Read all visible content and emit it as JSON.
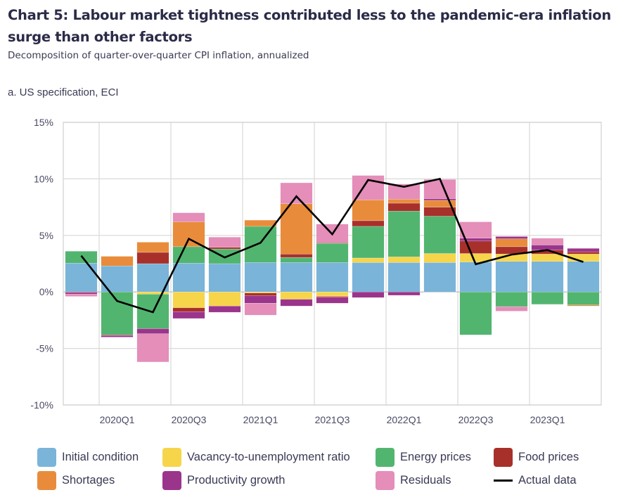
{
  "header": {
    "title": "Chart 5: Labour market tightness contributed less to the pandemic-era inflation surge than other factors",
    "subtitle": "Decomposition of quarter-over-quarter CPI inflation, annualized",
    "panel_label": "a. US specification, ECI"
  },
  "colors": {
    "initial_condition": "#7ab4d9",
    "vacancy_ratio": "#f6d54a",
    "energy": "#52b56f",
    "food": "#a8302b",
    "shortages": "#e88c3c",
    "productivity": "#9b358b",
    "residuals": "#e48eb9",
    "actual": "#000000",
    "grid": "#d9d9d9",
    "text": "#4a4a66"
  },
  "legend": [
    {
      "key": "initial_condition",
      "label": "Initial condition",
      "type": "box"
    },
    {
      "key": "vacancy_ratio",
      "label": "Vacancy-to-unemployment ratio",
      "type": "box"
    },
    {
      "key": "energy",
      "label": "Energy prices",
      "type": "box"
    },
    {
      "key": "food",
      "label": "Food prices",
      "type": "box"
    },
    {
      "key": "shortages",
      "label": "Shortages",
      "type": "box"
    },
    {
      "key": "productivity",
      "label": "Productivity growth",
      "type": "box"
    },
    {
      "key": "residuals",
      "label": "Residuals",
      "type": "box"
    },
    {
      "key": "actual",
      "label": "Actual data",
      "type": "line"
    }
  ],
  "chart_data": {
    "type": "bar",
    "stacked": true,
    "title": "Chart 5: Labour market tightness contributed less to the pandemic-era inflation surge than other factors",
    "subtitle": "Decomposition of quarter-over-quarter CPI inflation, annualized",
    "panel": "a. US specification, ECI",
    "xlabel": "",
    "ylabel": "",
    "ylim": [
      -10,
      15
    ],
    "yticks": [
      15,
      10,
      5,
      0,
      -5,
      -10
    ],
    "ytick_labels": [
      "15%",
      "10%",
      "5%",
      "0%",
      "-5%",
      "-10%"
    ],
    "grid": true,
    "legend_position": "bottom",
    "categories": [
      "2019Q4",
      "2020Q1",
      "2020Q2",
      "2020Q3",
      "2020Q4",
      "2021Q1",
      "2021Q2",
      "2021Q3",
      "2021Q4",
      "2022Q1",
      "2022Q2",
      "2022Q3",
      "2022Q4",
      "2023Q1",
      "2023Q2"
    ],
    "xtick_labels": [
      "",
      "2020Q1",
      "",
      "2020Q3",
      "",
      "2021Q1",
      "",
      "2021Q3",
      "",
      "2022Q1",
      "",
      "2022Q3",
      "",
      "2023Q1",
      ""
    ],
    "series": [
      {
        "name": "Initial condition",
        "key": "initial_condition",
        "values": [
          2.55,
          2.3,
          2.5,
          2.55,
          2.5,
          2.6,
          2.6,
          2.6,
          2.6,
          2.6,
          2.6,
          2.65,
          2.7,
          2.7,
          2.7
        ]
      },
      {
        "name": "Vacancy-to-unemployment ratio",
        "key": "vacancy_ratio",
        "values": [
          0.0,
          0.0,
          -0.2,
          -1.4,
          -1.25,
          -0.1,
          -0.65,
          -0.35,
          0.4,
          0.5,
          0.8,
          0.75,
          0.65,
          0.65,
          0.65
        ]
      },
      {
        "name": "Energy prices",
        "key": "energy",
        "values": [
          1.05,
          -3.8,
          -3.05,
          1.45,
          1.3,
          3.2,
          0.45,
          1.7,
          2.8,
          4.05,
          3.3,
          -3.8,
          -1.3,
          -1.1,
          -1.15
        ]
      },
      {
        "name": "Food prices",
        "key": "food",
        "values": [
          -0.05,
          -0.05,
          1.0,
          -0.35,
          0.15,
          -0.25,
          0.3,
          0.05,
          0.5,
          0.7,
          0.8,
          1.1,
          0.65,
          0.35,
          0.2
        ]
      },
      {
        "name": "Shortages",
        "key": "shortages",
        "values": [
          0.0,
          0.85,
          0.9,
          2.2,
          0.0,
          0.55,
          4.45,
          -0.1,
          1.85,
          0.35,
          0.6,
          0.0,
          0.7,
          0.0,
          -0.1
        ]
      },
      {
        "name": "Productivity growth",
        "key": "productivity",
        "values": [
          -0.15,
          -0.15,
          -0.45,
          -0.6,
          -0.55,
          -0.65,
          -0.6,
          -0.55,
          -0.5,
          -0.3,
          0.15,
          0.25,
          0.2,
          0.45,
          0.3
        ]
      },
      {
        "name": "Residuals",
        "key": "residuals",
        "values": [
          -0.2,
          0.0,
          -2.5,
          0.8,
          0.9,
          -1.05,
          1.85,
          1.65,
          2.15,
          1.35,
          1.7,
          1.45,
          -0.4,
          0.6,
          0.0
        ]
      }
    ],
    "line": {
      "name": "Actual data",
      "key": "actual",
      "values": [
        3.2,
        -0.8,
        -1.8,
        4.7,
        3.05,
        4.35,
        8.45,
        5.1,
        9.9,
        9.3,
        10.0,
        2.45,
        3.3,
        3.7,
        2.65
      ]
    }
  }
}
